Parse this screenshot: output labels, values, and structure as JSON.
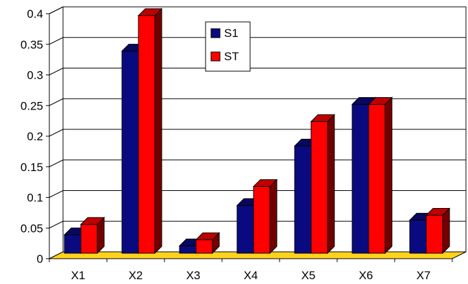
{
  "chart_data": {
    "type": "bar",
    "categories": [
      "X1",
      "X2",
      "X3",
      "X4",
      "X5",
      "X6",
      "X7"
    ],
    "series": [
      {
        "name": "S1",
        "values": [
          0.03,
          0.33,
          0.012,
          0.078,
          0.175,
          0.243,
          0.054
        ],
        "color": "#0a0a80"
      },
      {
        "name": "ST",
        "values": [
          0.047,
          0.388,
          0.022,
          0.109,
          0.215,
          0.243,
          0.062
        ],
        "color": "#ff0000"
      }
    ],
    "ylim": [
      0,
      0.4
    ],
    "yticks": [
      "0",
      "0.05",
      "0.1",
      "0.15",
      "0.2",
      "0.25",
      "0.3",
      "0.35",
      "0.4"
    ],
    "grid": true,
    "legend_position": "top-center",
    "floor_color": "#ffd21e",
    "title": "",
    "xlabel": "",
    "ylabel": ""
  }
}
